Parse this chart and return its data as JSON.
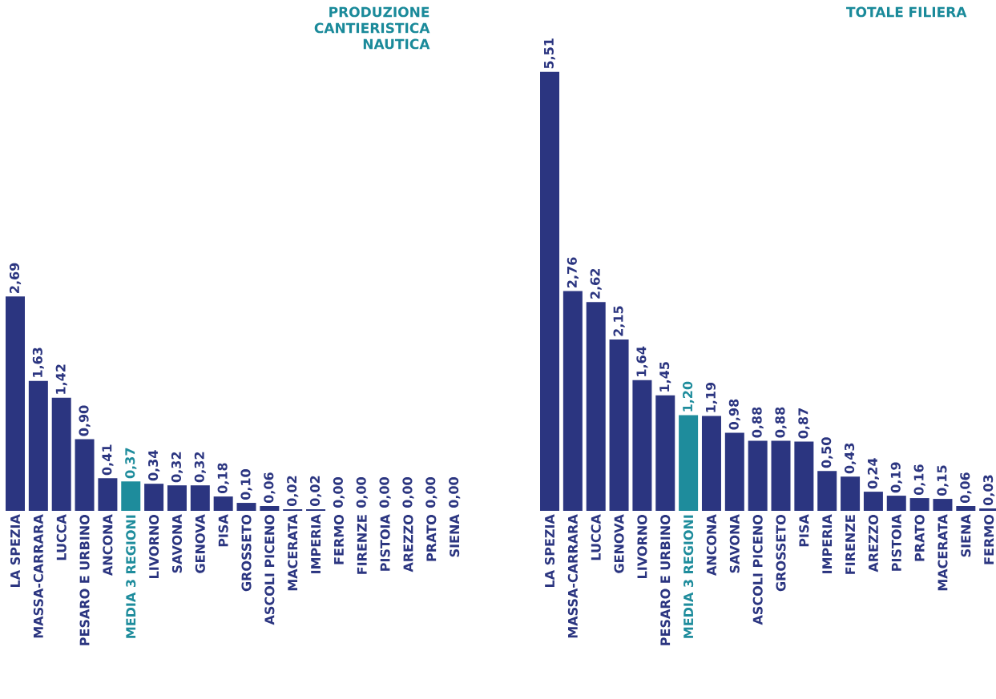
{
  "chart_data": [
    {
      "type": "bar",
      "title": "PRODUZIONE CANTIERISTICA NAUTICA",
      "categories": [
        "LA SPEZIA",
        "MASSA-CARRARA",
        "LUCCA",
        "PESARO E URBINO",
        "ANCONA",
        "MEDIA 3 REGIONI",
        "LIVORNO",
        "SAVONA",
        "GENOVA",
        "PISA",
        "GROSSETO",
        "ASCOLI PICENO",
        "MACERATA",
        "IMPERIA",
        "FERMO",
        "FIRENZE",
        "PISTOIA",
        "AREZZO",
        "PRATO",
        "SIENA"
      ],
      "values": [
        2.69,
        1.63,
        1.42,
        0.9,
        0.41,
        0.37,
        0.34,
        0.32,
        0.32,
        0.18,
        0.1,
        0.06,
        0.02,
        0.02,
        0,
        0,
        0,
        0,
        0,
        0
      ],
      "value_labels": [
        "2,69",
        "1,63",
        "1,42",
        "0,90",
        "0,41",
        "0,37",
        "0,34",
        "0,32",
        "0,32",
        "0,18",
        "0,10",
        "0,06",
        "0,02",
        "0,02",
        "0,00",
        "0,00",
        "0,00",
        "0,00",
        "0,00",
        "0,00"
      ],
      "colors": [
        "#2b3580",
        "#2b3580",
        "#2b3580",
        "#2b3580",
        "#2b3580",
        "#1e8c9c",
        "#2b3580",
        "#2b3580",
        "#2b3580",
        "#2b3580",
        "#2b3580",
        "#2b3580",
        "#2b3580",
        "#2b3580",
        "#2b3580",
        "#2b3580",
        "#2b3580",
        "#2b3580",
        "#2b3580",
        "#2b3580"
      ]
    },
    {
      "type": "bar",
      "title": "TOTALE FILIERA",
      "categories": [
        "LA SPEZIA",
        "MASSA-CARRARA",
        "LUCCA",
        "GENOVA",
        "LIVORNO",
        "PESARO E URBINO",
        "MEDIA 3 REGIONI",
        "ANCONA",
        "SAVONA",
        "ASCOLI PICENO",
        "GROSSETO",
        "PISA",
        "IMPERIA",
        "FIRENZE",
        "AREZZO",
        "PISTOIA",
        "PRATO",
        "MACERATA",
        "SIENA",
        "FERMO"
      ],
      "values": [
        5.51,
        2.76,
        2.62,
        2.15,
        1.64,
        1.45,
        1.2,
        1.19,
        0.98,
        0.88,
        0.88,
        0.87,
        0.5,
        0.43,
        0.24,
        0.19,
        0.16,
        0.15,
        0.06,
        0.03
      ],
      "value_labels": [
        "5,51",
        "2,76",
        "2,62",
        "2,15",
        "1,64",
        "1,45",
        "1,20",
        "1,19",
        "0,98",
        "0,88",
        "0,88",
        "0,87",
        "0,50",
        "0,43",
        "0,24",
        "0,19",
        "0,16",
        "0,15",
        "0,06",
        "0,03"
      ],
      "colors": [
        "#2b3580",
        "#2b3580",
        "#2b3580",
        "#2b3580",
        "#2b3580",
        "#2b3580",
        "#1e8c9c",
        "#2b3580",
        "#2b3580",
        "#2b3580",
        "#2b3580",
        "#2b3580",
        "#2b3580",
        "#2b3580",
        "#2b3580",
        "#2b3580",
        "#2b3580",
        "#2b3580",
        "#2b3580",
        "#2b3580"
      ]
    }
  ]
}
